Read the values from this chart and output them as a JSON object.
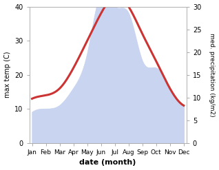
{
  "months": [
    "Jan",
    "Feb",
    "Mar",
    "Apr",
    "May",
    "Jun",
    "Jul",
    "Aug",
    "Sep",
    "Oct",
    "Nov",
    "Dec"
  ],
  "month_indices": [
    0,
    1,
    2,
    3,
    4,
    5,
    6,
    7,
    8,
    9,
    10,
    11
  ],
  "max_temp": [
    13,
    14,
    16,
    22,
    30,
    38,
    43,
    40,
    32,
    24,
    16,
    11
  ],
  "precipitation": [
    9,
    10,
    11,
    16,
    26,
    44,
    40,
    38,
    24,
    22,
    16,
    11
  ],
  "temp_color": "#cc3333",
  "precip_fill_color": "#c8d4f0",
  "bg_color": "#ffffff",
  "xlabel": "date (month)",
  "ylabel_left": "max temp (C)",
  "ylabel_right": "med. precipitation (kg/m2)",
  "ylim_left": [
    0,
    40
  ],
  "ylim_right": [
    0,
    30
  ],
  "right_yticks": [
    0,
    5,
    10,
    15,
    20,
    25,
    30
  ],
  "left_yticks": [
    0,
    10,
    20,
    30,
    40
  ],
  "line_width": 2.2,
  "precip_scale": 0.75
}
